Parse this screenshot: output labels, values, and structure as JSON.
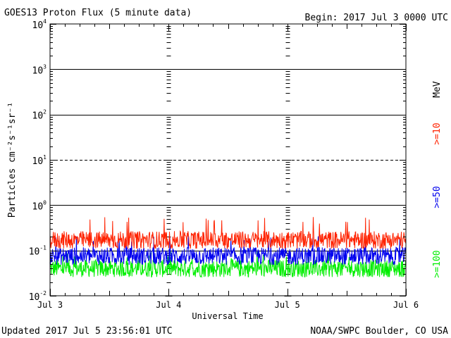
{
  "chart_data": {
    "type": "line",
    "title": "GOES13 Proton Flux (5 minute data)",
    "begin_label": "Begin: 2017 Jul 3 0000 UTC",
    "xlabel": "Universal Time",
    "ylabel": "Particles cm⁻²s⁻¹sr⁻¹",
    "y_scale": "log",
    "ylim": [
      0.01,
      10000
    ],
    "xlim": [
      0,
      3
    ],
    "x_units": "days since 2017 Jul 3 00:00 UTC",
    "x_tick_labels": [
      "Jul 3",
      "Jul 4",
      "Jul 5",
      "Jul 6"
    ],
    "y_ticks": [
      {
        "base": "10",
        "exp": "-2"
      },
      {
        "base": "10",
        "exp": "-1"
      },
      {
        "base": "10",
        "exp": "0"
      },
      {
        "base": "10",
        "exp": "1"
      },
      {
        "base": "10",
        "exp": "2"
      },
      {
        "base": "10",
        "exp": "3"
      },
      {
        "base": "10",
        "exp": "4"
      }
    ],
    "reference_lines": [
      {
        "value": 1000,
        "style": "solid"
      },
      {
        "value": 100,
        "style": "solid"
      },
      {
        "value": 10,
        "style": "dashed"
      },
      {
        "value": 1,
        "style": "solid"
      },
      {
        "value": 0.1,
        "style": "solid"
      }
    ],
    "units_label": "MeV",
    "series": [
      {
        "name": ">=10",
        "color": "#ff2200",
        "typical_value": 0.17,
        "range": [
          0.11,
          0.55
        ]
      },
      {
        "name": ">=50",
        "color": "#0000ee",
        "typical_value": 0.075,
        "range": [
          0.045,
          0.22
        ]
      },
      {
        "name": ">=100",
        "color": "#00ee00",
        "typical_value": 0.04,
        "range": [
          0.026,
          0.095
        ]
      }
    ],
    "grid": false,
    "legend": "right"
  },
  "footer": {
    "updated": "Updated 2017 Jul  5 23:56:01 UTC",
    "source": "NOAA/SWPC Boulder, CO USA"
  }
}
